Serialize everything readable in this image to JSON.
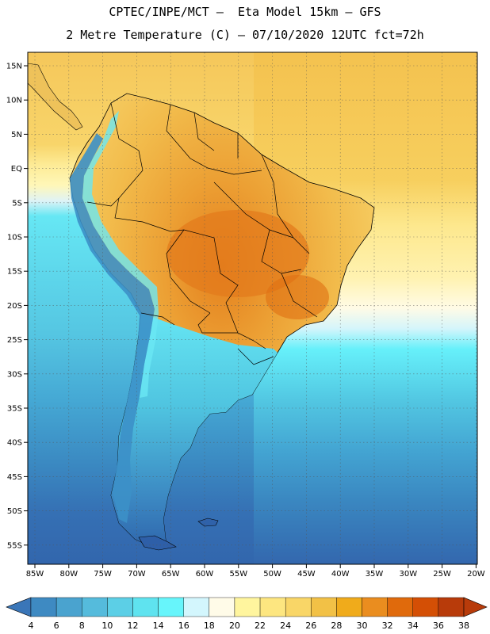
{
  "title_line1": "CPTEC/INPE/MCT –  Eta Model 15km – GFS",
  "title_line2": "2 Metre Temperature (C) – 07/10/2020 12UTC fct=72h",
  "lat_labels": [
    "15N",
    "10N",
    "5N",
    "EQ",
    "5S",
    "10S",
    "15S",
    "20S",
    "25S",
    "30S",
    "35S",
    "40S",
    "45S",
    "50S",
    "55S"
  ],
  "lon_labels": [
    "85W",
    "80W",
    "75W",
    "70W",
    "65W",
    "60W",
    "55W",
    "50W",
    "45W",
    "40W",
    "35W",
    "30W",
    "25W",
    "20W"
  ],
  "colorbar": {
    "labels": [
      "4",
      "6",
      "8",
      "10",
      "12",
      "14",
      "16",
      "18",
      "20",
      "22",
      "24",
      "26",
      "28",
      "30",
      "32",
      "34",
      "36",
      "38"
    ],
    "colors": [
      "#3a76b8",
      "#3e8ac2",
      "#4aa3cf",
      "#55bbdc",
      "#5ccfe6",
      "#5fe3ef",
      "#67f5fb",
      "#d3f6fd",
      "#fffbe8",
      "#fff59e",
      "#fde680",
      "#f9d667",
      "#f2c146",
      "#f0ab1b",
      "#ea8d1f",
      "#e06a0c",
      "#d44f05",
      "#b83b0a"
    ]
  },
  "colors": {
    "ocean_south": "#3566ad",
    "ocean_mid": "#3e8fc6",
    "ocean_cyan": "#4fe6f2",
    "tropical_sea": "#f3c656",
    "land_warm": "#eeab2e",
    "land_hot": "#e5841f",
    "andes": "#2f74b4",
    "border": "#000000"
  }
}
